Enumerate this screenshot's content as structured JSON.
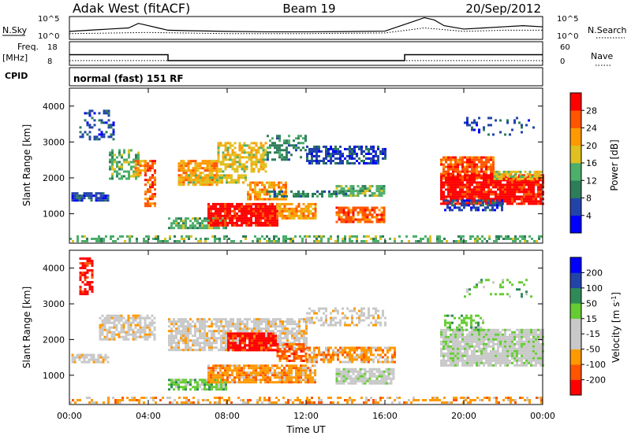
{
  "header": {
    "station": "Adak West (fitACF)",
    "beam": "Beam 19",
    "date": "20/Sep/2012"
  },
  "aux_panels": {
    "nsky_label": "N.Sky",
    "nsearch_label": "N.Search",
    "nsky_ticks": [
      "10^5",
      "10^0"
    ],
    "freq_label": "Freq.",
    "freq_unit": "[MHz]",
    "freq_ticks": [
      "18",
      "8"
    ],
    "nave_label": "Nave",
    "nave_ticks": [
      "60",
      "0"
    ],
    "cpid_label": "CPID",
    "cpid_text": "normal (fast) 151 RF"
  },
  "colors": {
    "power_scale": [
      "#0000ff",
      "#2244aa",
      "#2e7d5a",
      "#4caf6a",
      "#e0c020",
      "#ff9900",
      "#ff5500",
      "#ff0000"
    ],
    "velocity_scale": [
      "#ff0000",
      "#ff5500",
      "#ff9900",
      "#c8c8c8",
      "#c8c8c8",
      "#66cc33",
      "#2e8b57",
      "#2244aa",
      "#0000ff"
    ]
  },
  "chart_data": [
    {
      "type": "line",
      "panel": "noise",
      "series": [
        {
          "name": "N.Sky",
          "x": [
            0,
            1,
            2,
            3,
            3.5,
            4,
            4.5,
            5,
            6,
            8,
            10,
            12,
            14,
            16,
            17.5,
            18,
            18.5,
            19,
            20,
            21,
            22,
            23,
            24
          ],
          "y": [
            0.35,
            0.4,
            0.45,
            0.5,
            0.7,
            0.6,
            0.5,
            0.4,
            0.38,
            0.35,
            0.33,
            0.33,
            0.34,
            0.36,
            0.8,
            0.95,
            0.85,
            0.6,
            0.45,
            0.5,
            0.55,
            0.6,
            0.55
          ]
        },
        {
          "name": "N.Search",
          "x": [
            0,
            4,
            8,
            12,
            16,
            18,
            20,
            22,
            24
          ],
          "y": [
            0.25,
            0.3,
            0.25,
            0.25,
            0.28,
            0.5,
            0.35,
            0.4,
            0.4
          ]
        }
      ],
      "xlim": [
        0,
        24
      ],
      "ylim": [
        0,
        1
      ]
    },
    {
      "type": "line",
      "panel": "freq",
      "series": [
        {
          "name": "Freq.",
          "x": [
            0,
            5,
            5,
            17,
            17,
            24
          ],
          "y": [
            12.5,
            12.5,
            10,
            10,
            12.5,
            12.5
          ]
        },
        {
          "name": "Nave",
          "x": [
            0,
            24
          ],
          "y": [
            10,
            10
          ]
        }
      ],
      "xlim": [
        0,
        24
      ],
      "ylim": [
        8,
        18
      ]
    },
    {
      "type": "heatmap",
      "panel": "power",
      "ylabel": "Slant Range [km]",
      "colorbar_label": "Power [dB]",
      "colorbar_ticks": [
        "4",
        "8",
        "12",
        "16",
        "20",
        "24",
        "28"
      ],
      "yticks": [
        "1000",
        "2000",
        "3000",
        "4000"
      ],
      "xlim": [
        0,
        24
      ],
      "ylim": [
        180,
        4500
      ],
      "regions": [
        {
          "x0": 0,
          "x1": 24,
          "y0": 250,
          "y1": 400,
          "level": 3,
          "density": 0.45
        },
        {
          "x0": 0.1,
          "x1": 2.0,
          "y0": 1400,
          "y1": 1600,
          "level": 1,
          "density": 0.8
        },
        {
          "x0": 0.5,
          "x1": 2.2,
          "y0": 3100,
          "y1": 3900,
          "level": 1,
          "density": 0.3
        },
        {
          "x0": 2.0,
          "x1": 3.5,
          "y0": 2000,
          "y1": 2800,
          "level": 3,
          "density": 0.6
        },
        {
          "x0": 3.3,
          "x1": 3.9,
          "y0": 2100,
          "y1": 2500,
          "level": 5,
          "density": 0.7
        },
        {
          "x0": 3.8,
          "x1": 4.3,
          "y0": 1200,
          "y1": 2500,
          "level": 6,
          "density": 0.7
        },
        {
          "x0": 5.5,
          "x1": 7.5,
          "y0": 1800,
          "y1": 2500,
          "level": 5,
          "density": 0.8
        },
        {
          "x0": 7.5,
          "x1": 10,
          "y0": 2200,
          "y1": 3000,
          "level": 4,
          "density": 0.7
        },
        {
          "x0": 10,
          "x1": 12,
          "y0": 2500,
          "y1": 3200,
          "level": 2,
          "density": 0.5
        },
        {
          "x0": 12,
          "x1": 16,
          "y0": 2400,
          "y1": 2900,
          "level": 1,
          "density": 0.6
        },
        {
          "x0": 6.0,
          "x1": 9.0,
          "y0": 1900,
          "y1": 2100,
          "level": 4,
          "density": 0.8
        },
        {
          "x0": 9.0,
          "x1": 11,
          "y0": 1400,
          "y1": 1900,
          "level": 5,
          "density": 0.7
        },
        {
          "x0": 5.0,
          "x1": 8.0,
          "y0": 600,
          "y1": 900,
          "level": 3,
          "density": 0.8
        },
        {
          "x0": 7.0,
          "x1": 10.5,
          "y0": 700,
          "y1": 1300,
          "level": 7,
          "density": 0.9
        },
        {
          "x0": 10.5,
          "x1": 12.5,
          "y0": 900,
          "y1": 1300,
          "level": 5,
          "density": 0.8
        },
        {
          "x0": 13.5,
          "x1": 16.0,
          "y0": 800,
          "y1": 1200,
          "level": 6,
          "density": 0.85
        },
        {
          "x0": 13.5,
          "x1": 16.0,
          "y0": 1500,
          "y1": 1800,
          "level": 3,
          "density": 0.7
        },
        {
          "x0": 10,
          "x1": 14,
          "y0": 1500,
          "y1": 1650,
          "level": 2,
          "density": 0.6
        },
        {
          "x0": 18.8,
          "x1": 21.5,
          "y0": 2000,
          "y1": 2600,
          "level": 6,
          "density": 0.8
        },
        {
          "x0": 18.8,
          "x1": 24,
          "y0": 1300,
          "y1": 2100,
          "level": 7,
          "density": 0.9
        },
        {
          "x0": 21.5,
          "x1": 24,
          "y0": 2000,
          "y1": 2200,
          "level": 4,
          "density": 0.7
        },
        {
          "x0": 19,
          "x1": 22,
          "y0": 1100,
          "y1": 1400,
          "level": 1,
          "density": 0.6
        },
        {
          "x0": 20,
          "x1": 23.5,
          "y0": 3200,
          "y1": 3700,
          "level": 1,
          "density": 0.2
        }
      ]
    },
    {
      "type": "heatmap",
      "panel": "velocity",
      "ylabel": "Slant Range [km]",
      "xlabel": "Time UT",
      "colorbar_label": "Velocity [m s",
      "colorbar_unit_sup": "-1",
      "colorbar_unit_close": "]",
      "colorbar_ticks": [
        "200",
        "100",
        "50",
        "15",
        "-15",
        "-50",
        "-100",
        "-200"
      ],
      "yticks": [
        "1000",
        "2000",
        "3000",
        "4000"
      ],
      "xticks": [
        "00:00",
        "04:00",
        "08:00",
        "12:00",
        "16:00",
        "20:00",
        "00:00"
      ],
      "xlim": [
        0,
        24
      ],
      "ylim": [
        180,
        4500
      ],
      "regions": [
        {
          "x0": 0,
          "x1": 24,
          "y0": 250,
          "y1": 400,
          "level": 2,
          "density": 0.45
        },
        {
          "x0": 0.5,
          "x1": 1.2,
          "y0": 3300,
          "y1": 4300,
          "level": 0,
          "density": 0.6
        },
        {
          "x0": 1.5,
          "x1": 4.3,
          "y0": 2000,
          "y1": 2700,
          "level": 3,
          "density": 0.7
        },
        {
          "x0": 0.1,
          "x1": 2.0,
          "y0": 1400,
          "y1": 1600,
          "level": 3,
          "density": 0.8
        },
        {
          "x0": 5.0,
          "x1": 12,
          "y0": 1700,
          "y1": 2600,
          "level": 3,
          "density": 0.75
        },
        {
          "x0": 8.0,
          "x1": 10.5,
          "y0": 1700,
          "y1": 2200,
          "level": 0,
          "density": 0.85
        },
        {
          "x0": 10.5,
          "x1": 12,
          "y0": 1400,
          "y1": 1900,
          "level": 1,
          "density": 0.7
        },
        {
          "x0": 5.0,
          "x1": 8.0,
          "y0": 600,
          "y1": 900,
          "level": 5,
          "density": 0.8
        },
        {
          "x0": 7.0,
          "x1": 12.5,
          "y0": 800,
          "y1": 1300,
          "level": 2,
          "density": 0.85
        },
        {
          "x0": 13.5,
          "x1": 16.5,
          "y0": 800,
          "y1": 1200,
          "level": 4,
          "density": 0.85
        },
        {
          "x0": 12,
          "x1": 16.5,
          "y0": 1400,
          "y1": 1800,
          "level": 2,
          "density": 0.7
        },
        {
          "x0": 12,
          "x1": 16,
          "y0": 2400,
          "y1": 2900,
          "level": 3,
          "density": 0.5
        },
        {
          "x0": 18.8,
          "x1": 24,
          "y0": 1300,
          "y1": 2300,
          "level": 4,
          "density": 0.9
        },
        {
          "x0": 19,
          "x1": 21,
          "y0": 2300,
          "y1": 2700,
          "level": 5,
          "density": 0.5
        },
        {
          "x0": 20,
          "x1": 23.5,
          "y0": 3200,
          "y1": 3700,
          "level": 5,
          "density": 0.2
        }
      ]
    }
  ]
}
